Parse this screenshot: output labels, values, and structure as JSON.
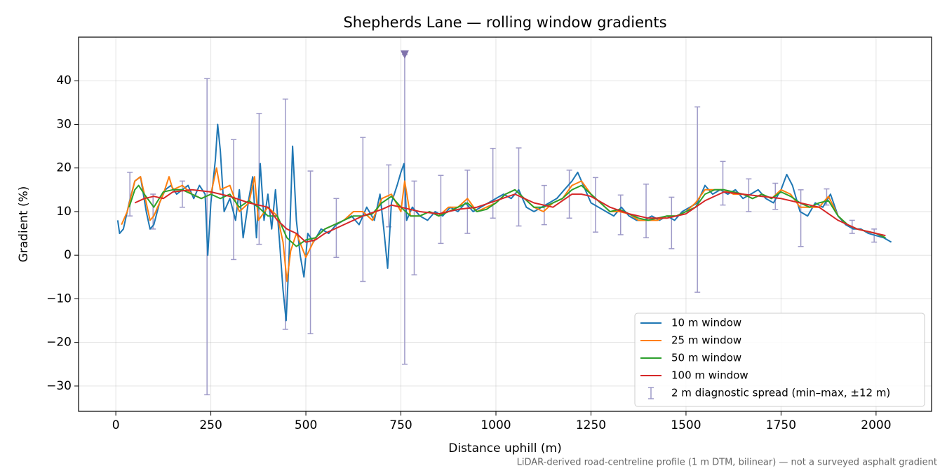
{
  "chart_data": {
    "type": "line",
    "title": "Shepherds Lane — rolling window gradients",
    "xlabel": "Distance uphill (m)",
    "ylabel": "Gradient (%)",
    "footnote": "LiDAR-derived road-centreline profile (1 m DTM, bilinear) — not a surveyed asphalt gradient",
    "xlim": [
      -98,
      2146
    ],
    "ylim": [
      -35.8,
      50
    ],
    "xticks": [
      0,
      250,
      500,
      750,
      1000,
      1250,
      1500,
      1750,
      2000
    ],
    "yticks": [
      {
        "value": -30,
        "label": "−30"
      },
      {
        "value": -20,
        "label": "−20"
      },
      {
        "value": -10,
        "label": "−10"
      },
      0,
      10,
      20,
      30,
      40
    ],
    "grid": true,
    "legend": "lower right",
    "series": [
      {
        "name": "10 m window",
        "color": "#1f77b4",
        "x": [
          5,
          10,
          20,
          35,
          50,
          65,
          80,
          90,
          100,
          115,
          130,
          145,
          160,
          175,
          190,
          205,
          220,
          235,
          242,
          250,
          262,
          268,
          275,
          285,
          300,
          315,
          325,
          335,
          350,
          360,
          370,
          380,
          390,
          400,
          410,
          420,
          430,
          440,
          448,
          455,
          465,
          475,
          485,
          495,
          505,
          520,
          540,
          560,
          580,
          600,
          620,
          640,
          660,
          680,
          695,
          705,
          715,
          725,
          740,
          750,
          758,
          765,
          780,
          800,
          820,
          840,
          860,
          880,
          900,
          920,
          940,
          960,
          980,
          1000,
          1020,
          1040,
          1060,
          1080,
          1100,
          1120,
          1140,
          1160,
          1180,
          1200,
          1215,
          1230,
          1250,
          1270,
          1290,
          1310,
          1330,
          1350,
          1370,
          1390,
          1410,
          1430,
          1450,
          1470,
          1490,
          1510,
          1530,
          1550,
          1570,
          1590,
          1610,
          1630,
          1650,
          1670,
          1690,
          1710,
          1730,
          1750,
          1765,
          1780,
          1800,
          1820,
          1840,
          1860,
          1880,
          1900,
          1920,
          1940,
          1960,
          1980,
          2000,
          2020,
          2040
        ],
        "values": [
          8,
          5,
          6,
          12,
          17,
          18,
          10,
          6,
          7,
          12,
          15,
          16,
          14,
          15,
          16,
          13,
          16,
          14,
          0,
          12,
          22,
          30,
          24,
          10,
          13,
          8,
          15,
          4,
          13,
          18,
          4,
          21,
          8,
          14,
          6,
          15,
          4,
          -8,
          -15,
          -2,
          25,
          8,
          0,
          -5,
          5,
          3,
          6,
          5,
          7,
          8,
          9,
          7,
          11,
          8,
          14,
          6,
          -3,
          12,
          16,
          19,
          21,
          8,
          11,
          9,
          8,
          10,
          9,
          11,
          10,
          12,
          10,
          11,
          12,
          13,
          14,
          13,
          15,
          11,
          10,
          11,
          12,
          13,
          15,
          17,
          19,
          16,
          12,
          11,
          10,
          9,
          11,
          9,
          8,
          8,
          9,
          8,
          9,
          8,
          10,
          11,
          12,
          16,
          14,
          15,
          14,
          15,
          13,
          14,
          15,
          13,
          12,
          15,
          18.5,
          16,
          10,
          9,
          12,
          11,
          14,
          9,
          7,
          6,
          6,
          5,
          4.5,
          4,
          3
        ]
      },
      {
        "name": "25 m window",
        "color": "#ff7f0e",
        "x": [
          15,
          30,
          50,
          65,
          80,
          90,
          100,
          125,
          140,
          150,
          175,
          200,
          225,
          250,
          265,
          275,
          300,
          325,
          350,
          365,
          375,
          400,
          425,
          440,
          450,
          460,
          475,
          500,
          525,
          550,
          575,
          600,
          625,
          650,
          675,
          700,
          725,
          750,
          760,
          775,
          800,
          825,
          850,
          875,
          900,
          925,
          950,
          975,
          1000,
          1025,
          1050,
          1075,
          1100,
          1125,
          1150,
          1175,
          1200,
          1225,
          1250,
          1275,
          1300,
          1325,
          1350,
          1375,
          1400,
          1425,
          1450,
          1475,
          1500,
          1525,
          1550,
          1575,
          1600,
          1625,
          1650,
          1675,
          1700,
          1725,
          1750,
          1775,
          1800,
          1825,
          1850,
          1875,
          1900,
          1925,
          1950,
          1975,
          2000,
          2025
        ],
        "values": [
          7,
          10,
          17,
          18,
          12,
          8,
          9,
          14,
          18,
          15,
          16,
          14,
          13,
          14,
          20,
          15,
          16,
          10,
          12,
          18,
          8,
          11,
          9,
          3,
          -6,
          1,
          5,
          -0.5,
          4,
          6,
          7,
          8,
          10,
          10,
          8,
          13,
          14,
          10,
          17,
          9,
          9,
          10,
          9,
          11,
          11,
          13,
          10,
          11,
          12,
          14,
          15,
          13,
          11,
          10,
          12,
          13,
          16,
          17,
          14,
          12,
          10,
          10,
          9.5,
          8,
          8,
          8,
          9,
          9,
          10,
          12,
          15,
          15,
          15,
          14,
          14,
          13,
          14,
          13,
          15,
          14,
          11,
          11,
          11,
          13.5,
          9,
          7,
          6,
          5.5,
          5,
          4
        ]
      },
      {
        "name": "50 m window",
        "color": "#2ca02c",
        "x": [
          35,
          50,
          60,
          75,
          100,
          125,
          150,
          175,
          200,
          225,
          250,
          275,
          300,
          325,
          350,
          375,
          400,
          425,
          450,
          475,
          500,
          525,
          550,
          575,
          600,
          625,
          650,
          675,
          700,
          725,
          750,
          775,
          800,
          825,
          850,
          875,
          900,
          925,
          950,
          975,
          1000,
          1025,
          1050,
          1075,
          1100,
          1125,
          1150,
          1175,
          1200,
          1225,
          1250,
          1275,
          1300,
          1325,
          1350,
          1375,
          1400,
          1425,
          1450,
          1475,
          1500,
          1525,
          1550,
          1575,
          1600,
          1625,
          1650,
          1675,
          1700,
          1725,
          1750,
          1775,
          1800,
          1825,
          1850,
          1875,
          1900,
          1925,
          1950,
          1975,
          2000,
          2025
        ],
        "values": [
          11,
          15,
          16,
          14,
          11,
          14.5,
          15,
          15,
          14,
          13,
          14,
          13,
          14,
          11,
          12.5,
          11,
          9,
          9,
          4,
          2,
          3.5,
          4,
          6,
          7,
          8,
          9,
          9,
          9.5,
          12,
          13.5,
          11,
          9,
          9,
          10,
          9,
          10,
          11,
          12,
          10,
          10.5,
          12,
          14,
          15,
          13,
          11,
          11,
          12,
          13,
          15,
          16,
          14,
          12,
          10,
          10.5,
          9.5,
          8.5,
          8,
          8.5,
          9,
          9,
          10,
          11,
          14,
          15,
          15,
          14.5,
          14,
          13,
          14,
          13,
          14.5,
          13.5,
          12,
          11,
          12,
          12.5,
          9,
          7,
          6,
          5.5,
          5,
          4
        ]
      },
      {
        "name": "100 m window",
        "color": "#d62728",
        "x": [
          50,
          75,
          100,
          125,
          150,
          200,
          250,
          300,
          350,
          400,
          425,
          450,
          475,
          500,
          525,
          550,
          600,
          650,
          700,
          725,
          750,
          800,
          850,
          900,
          950,
          1000,
          1050,
          1100,
          1150,
          1200,
          1225,
          1250,
          1300,
          1350,
          1400,
          1450,
          1500,
          1550,
          1600,
          1650,
          1700,
          1750,
          1800,
          1850,
          1900,
          1950,
          2000,
          2025
        ],
        "values": [
          12,
          13,
          13.5,
          13,
          14.5,
          15,
          14.5,
          13.5,
          12,
          11,
          8,
          6,
          5,
          3,
          3.5,
          5,
          7,
          9,
          10.5,
          11.5,
          11,
          10,
          9.5,
          10.5,
          11,
          12.5,
          14,
          12,
          11,
          14,
          14,
          13.5,
          11,
          9.5,
          8.5,
          8.5,
          9.5,
          12.5,
          14.5,
          14,
          13.5,
          13,
          12,
          11,
          8,
          6,
          5,
          4.5
        ]
      }
    ],
    "errorbars": {
      "name": "2 m diagnostic spread (min–max, ±12 m)",
      "color": "#9e9ac8",
      "x": [
        37,
        98,
        175,
        240,
        310,
        377,
        446,
        512,
        580,
        650,
        718,
        760,
        785,
        855,
        925,
        992,
        1060,
        1127,
        1193,
        1262,
        1328,
        1395,
        1462,
        1530,
        1597,
        1665,
        1735,
        1802,
        1870,
        1937,
        1995
      ],
      "lows": [
        9,
        6,
        11,
        -32,
        -1,
        2.5,
        -17,
        -18,
        -0.5,
        -6,
        6.5,
        -25,
        -4.5,
        2.7,
        5,
        8.5,
        6.7,
        7,
        8.5,
        5.3,
        4.7,
        4,
        1.5,
        -8.5,
        11.5,
        10,
        10.5,
        2,
        11.5,
        5,
        3
      ],
      "highs": [
        19,
        14,
        17,
        40.5,
        26.5,
        32.5,
        35.8,
        19.3,
        13,
        27,
        20.7,
        46,
        17,
        18.3,
        19.5,
        24.5,
        24.6,
        16,
        19.5,
        17.8,
        13.8,
        16.3,
        13.3,
        34,
        21.5,
        17.5,
        16.5,
        15,
        15.2,
        8,
        6
      ]
    },
    "outlier_marker": {
      "x": 760,
      "y": 46,
      "color": "#8073ac"
    }
  }
}
